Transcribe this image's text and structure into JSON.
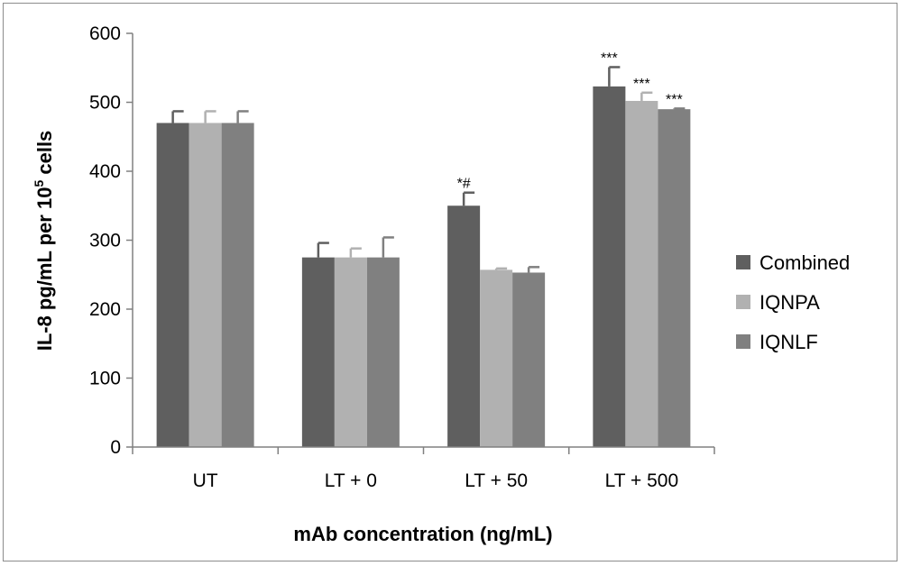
{
  "chart_data": {
    "type": "bar",
    "title": "",
    "xlabel": "mAb concentration (ng/mL)",
    "ylabel_main": "IL-8 pg/mL per 10",
    "ylabel_sup": "5",
    "ylabel_tail": " cells",
    "ylim": [
      0,
      600
    ],
    "yticks": [
      0,
      100,
      200,
      300,
      400,
      500,
      600
    ],
    "categories": [
      "UT",
      "LT + 0",
      "LT + 50",
      "LT + 500"
    ],
    "series": [
      {
        "name": "Combined",
        "color": "#5f5f5f",
        "values": [
          470,
          275,
          350,
          523
        ],
        "errors": [
          17,
          21,
          19,
          28
        ],
        "annotations": [
          "",
          "",
          "*#",
          "***"
        ]
      },
      {
        "name": "IQNPA",
        "color": "#b1b1b1",
        "values": [
          470,
          275,
          257,
          502
        ],
        "errors": [
          17,
          13,
          2,
          12
        ],
        "annotations": [
          "",
          "",
          "",
          "***"
        ]
      },
      {
        "name": "IQNLF",
        "color": "#808080",
        "values": [
          470,
          275,
          253,
          490
        ],
        "errors": [
          17,
          29,
          8,
          1
        ],
        "annotations": [
          "",
          "",
          "",
          "***"
        ]
      }
    ],
    "legend_position": "right",
    "grid": false
  }
}
